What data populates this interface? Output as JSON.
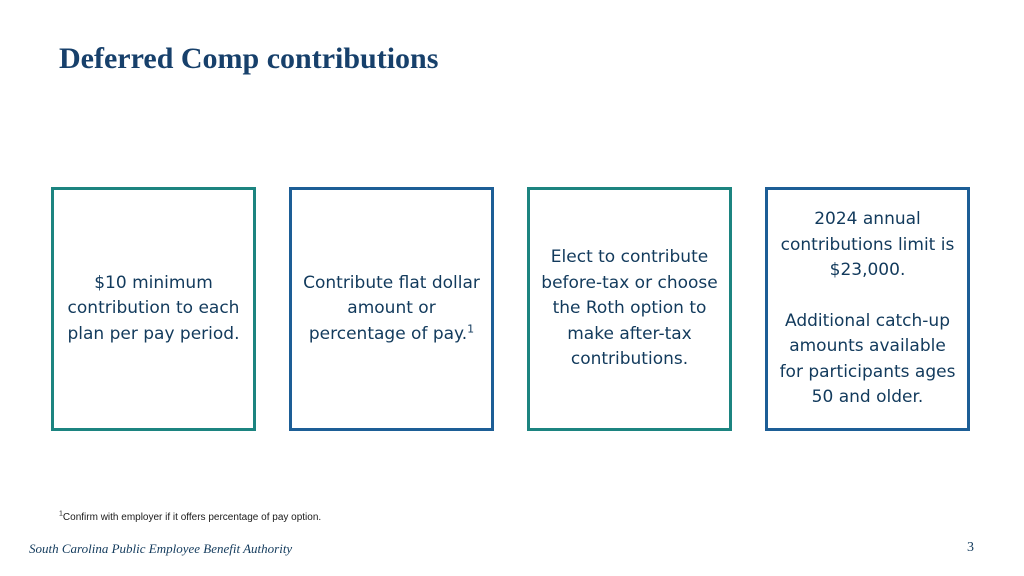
{
  "slide": {
    "title": "Deferred Comp contributions",
    "cards": [
      {
        "lines": [
          "$10 minimum contribution to each plan per pay period."
        ]
      },
      {
        "text": "Contribute flat dollar amount or percentage of pay.",
        "sup": "1"
      },
      {
        "lines": [
          "Elect to contribute before-tax or choose the Roth option to make after-tax contributions."
        ]
      },
      {
        "paragraph1": "2024 annual contributions limit is $23,000.",
        "paragraph2": "Additional catch-up amounts available for participants ages 50 and older."
      }
    ],
    "footnote": {
      "marker": "1",
      "text": "Confirm with employer if it offers percentage of pay option."
    },
    "organization": "South Carolina Public Employee Benefit Authority",
    "page_number": "3"
  },
  "colors": {
    "title": "#17406b",
    "card_border_teal": "#1c8480",
    "card_border_blue": "#1d5e96",
    "body_text": "#123a5c"
  }
}
